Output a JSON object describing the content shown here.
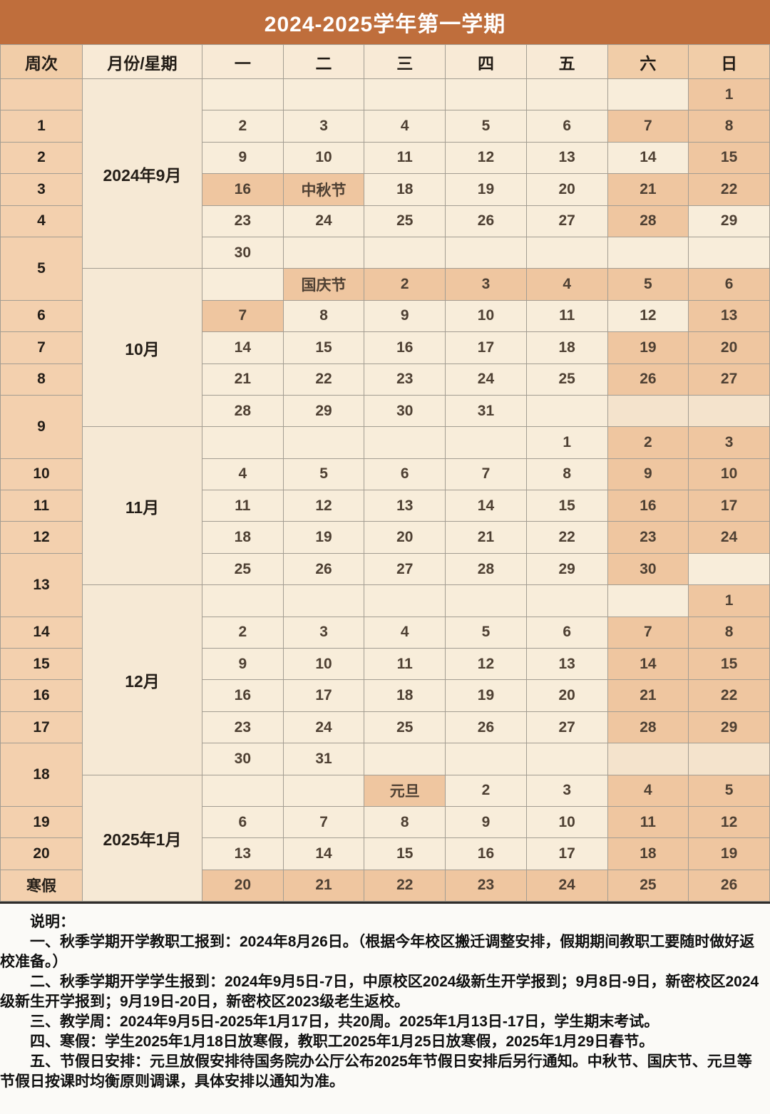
{
  "title": "2024-2025学年第一学期",
  "calendar": {
    "columns": [
      "周次",
      "月份/星期",
      "一",
      "二",
      "三",
      "四",
      "五",
      "六",
      "日"
    ],
    "holidays": [
      "中秋节",
      "国庆节",
      "元旦"
    ],
    "winter_break_label": "寒假",
    "rows": [
      {
        "w": "",
        "ws": 1,
        "m": "2024年9月",
        "ms": 6,
        "d": [
          [
            "",
            0
          ],
          [
            "",
            0
          ],
          [
            "",
            0
          ],
          [
            "",
            0
          ],
          [
            "",
            0
          ],
          [
            "",
            0
          ],
          [
            "1",
            1
          ]
        ]
      },
      {
        "w": "1",
        "ws": 1,
        "d": [
          [
            "2",
            0
          ],
          [
            "3",
            0
          ],
          [
            "4",
            0
          ],
          [
            "5",
            0
          ],
          [
            "6",
            0
          ],
          [
            "7",
            1
          ],
          [
            "8",
            1
          ]
        ]
      },
      {
        "w": "2",
        "ws": 1,
        "d": [
          [
            "9",
            0
          ],
          [
            "10",
            0
          ],
          [
            "11",
            0
          ],
          [
            "12",
            0
          ],
          [
            "13",
            0
          ],
          [
            "14",
            0
          ],
          [
            "15",
            1
          ]
        ]
      },
      {
        "w": "3",
        "ws": 1,
        "d": [
          [
            "16",
            1
          ],
          [
            "中秋节",
            1
          ],
          [
            "18",
            0
          ],
          [
            "19",
            0
          ],
          [
            "20",
            0
          ],
          [
            "21",
            1
          ],
          [
            "22",
            1
          ]
        ]
      },
      {
        "w": "4",
        "ws": 1,
        "d": [
          [
            "23",
            0
          ],
          [
            "24",
            0
          ],
          [
            "25",
            0
          ],
          [
            "26",
            0
          ],
          [
            "27",
            0
          ],
          [
            "28",
            1
          ],
          [
            "29",
            0
          ]
        ]
      },
      {
        "w": "5",
        "ws": 2,
        "d": [
          [
            "30",
            0
          ],
          [
            "",
            0
          ],
          [
            "",
            0
          ],
          [
            "",
            0
          ],
          [
            "",
            0
          ],
          [
            "",
            0
          ],
          [
            "",
            0
          ]
        ]
      },
      {
        "m": "10月",
        "ms": 5,
        "d": [
          [
            "",
            0
          ],
          [
            "国庆节",
            1
          ],
          [
            "2",
            1
          ],
          [
            "3",
            1
          ],
          [
            "4",
            1
          ],
          [
            "5",
            1
          ],
          [
            "6",
            1
          ]
        ]
      },
      {
        "w": "6",
        "ws": 1,
        "d": [
          [
            "7",
            1
          ],
          [
            "8",
            0
          ],
          [
            "9",
            0
          ],
          [
            "10",
            0
          ],
          [
            "11",
            0
          ],
          [
            "12",
            0
          ],
          [
            "13",
            1
          ]
        ]
      },
      {
        "w": "7",
        "ws": 1,
        "d": [
          [
            "14",
            0
          ],
          [
            "15",
            0
          ],
          [
            "16",
            0
          ],
          [
            "17",
            0
          ],
          [
            "18",
            0
          ],
          [
            "19",
            1
          ],
          [
            "20",
            1
          ]
        ]
      },
      {
        "w": "8",
        "ws": 1,
        "d": [
          [
            "21",
            0
          ],
          [
            "22",
            0
          ],
          [
            "23",
            0
          ],
          [
            "24",
            0
          ],
          [
            "25",
            0
          ],
          [
            "26",
            1
          ],
          [
            "27",
            1
          ]
        ]
      },
      {
        "w": "9",
        "ws": 2,
        "d": [
          [
            "28",
            0
          ],
          [
            "29",
            0
          ],
          [
            "30",
            0
          ],
          [
            "31",
            0
          ],
          [
            "",
            0
          ],
          [
            "",
            2
          ],
          [
            "",
            2
          ]
        ]
      },
      {
        "m": "11月",
        "ms": 5,
        "d": [
          [
            "",
            0
          ],
          [
            "",
            0
          ],
          [
            "",
            0
          ],
          [
            "",
            0
          ],
          [
            "1",
            0
          ],
          [
            "2",
            1
          ],
          [
            "3",
            1
          ]
        ]
      },
      {
        "w": "10",
        "ws": 1,
        "d": [
          [
            "4",
            0
          ],
          [
            "5",
            0
          ],
          [
            "6",
            0
          ],
          [
            "7",
            0
          ],
          [
            "8",
            0
          ],
          [
            "9",
            1
          ],
          [
            "10",
            1
          ]
        ]
      },
      {
        "w": "11",
        "ws": 1,
        "d": [
          [
            "11",
            0
          ],
          [
            "12",
            0
          ],
          [
            "13",
            0
          ],
          [
            "14",
            0
          ],
          [
            "15",
            0
          ],
          [
            "16",
            1
          ],
          [
            "17",
            1
          ]
        ]
      },
      {
        "w": "12",
        "ws": 1,
        "d": [
          [
            "18",
            0
          ],
          [
            "19",
            0
          ],
          [
            "20",
            0
          ],
          [
            "21",
            0
          ],
          [
            "22",
            0
          ],
          [
            "23",
            1
          ],
          [
            "24",
            1
          ]
        ]
      },
      {
        "w": "13",
        "ws": 2,
        "d": [
          [
            "25",
            0
          ],
          [
            "26",
            0
          ],
          [
            "27",
            0
          ],
          [
            "28",
            0
          ],
          [
            "29",
            0
          ],
          [
            "30",
            1
          ],
          [
            "",
            0
          ]
        ]
      },
      {
        "m": "12月",
        "ms": 6,
        "d": [
          [
            "",
            0
          ],
          [
            "",
            0
          ],
          [
            "",
            0
          ],
          [
            "",
            0
          ],
          [
            "",
            0
          ],
          [
            "",
            0
          ],
          [
            "1",
            1
          ]
        ]
      },
      {
        "w": "14",
        "ws": 1,
        "d": [
          [
            "2",
            0
          ],
          [
            "3",
            0
          ],
          [
            "4",
            0
          ],
          [
            "5",
            0
          ],
          [
            "6",
            0
          ],
          [
            "7",
            1
          ],
          [
            "8",
            1
          ]
        ]
      },
      {
        "w": "15",
        "ws": 1,
        "d": [
          [
            "9",
            0
          ],
          [
            "10",
            0
          ],
          [
            "11",
            0
          ],
          [
            "12",
            0
          ],
          [
            "13",
            0
          ],
          [
            "14",
            1
          ],
          [
            "15",
            1
          ]
        ]
      },
      {
        "w": "16",
        "ws": 1,
        "d": [
          [
            "16",
            0
          ],
          [
            "17",
            0
          ],
          [
            "18",
            0
          ],
          [
            "19",
            0
          ],
          [
            "20",
            0
          ],
          [
            "21",
            1
          ],
          [
            "22",
            1
          ]
        ]
      },
      {
        "w": "17",
        "ws": 1,
        "d": [
          [
            "23",
            0
          ],
          [
            "24",
            0
          ],
          [
            "25",
            0
          ],
          [
            "26",
            0
          ],
          [
            "27",
            0
          ],
          [
            "28",
            1
          ],
          [
            "29",
            1
          ]
        ]
      },
      {
        "w": "18",
        "ws": 2,
        "d": [
          [
            "30",
            0
          ],
          [
            "31",
            0
          ],
          [
            "",
            0
          ],
          [
            "",
            0
          ],
          [
            "",
            0
          ],
          [
            "",
            2
          ],
          [
            "",
            2
          ]
        ]
      },
      {
        "m": "2025年1月",
        "ms": 4,
        "d": [
          [
            "",
            0
          ],
          [
            "",
            0
          ],
          [
            "元旦",
            1
          ],
          [
            "2",
            0
          ],
          [
            "3",
            0
          ],
          [
            "4",
            1
          ],
          [
            "5",
            1
          ]
        ]
      },
      {
        "w": "19",
        "ws": 1,
        "d": [
          [
            "6",
            0
          ],
          [
            "7",
            0
          ],
          [
            "8",
            0
          ],
          [
            "9",
            0
          ],
          [
            "10",
            0
          ],
          [
            "11",
            1
          ],
          [
            "12",
            1
          ]
        ]
      },
      {
        "w": "20",
        "ws": 1,
        "d": [
          [
            "13",
            0
          ],
          [
            "14",
            0
          ],
          [
            "15",
            0
          ],
          [
            "16",
            0
          ],
          [
            "17",
            0
          ],
          [
            "18",
            1
          ],
          [
            "19",
            1
          ]
        ]
      },
      {
        "w": "寒假",
        "ws": 1,
        "d": [
          [
            "20",
            1
          ],
          [
            "21",
            1
          ],
          [
            "22",
            1
          ],
          [
            "23",
            1
          ],
          [
            "24",
            1
          ],
          [
            "25",
            1
          ],
          [
            "26",
            1
          ]
        ]
      }
    ]
  },
  "notes": {
    "heading": "说明：",
    "items": [
      "一、秋季学期开学教职工报到：2024年8月26日。（根据今年校区搬迁调整安排，假期期间教职工要随时做好返校准备。）",
      "二、秋季学期开学学生报到：2024年9月5日-7日，中原校区2024级新生开学报到；9月8日-9日，新密校区2024级新生开学报到；9月19日-20日，新密校区2023级老生返校。",
      "三、教学周：2024年9月5日-2025年1月17日，共20周。2025年1月13日-17日，学生期末考试。",
      "四、寒假：学生2025年1月18日放寒假，教职工2025年1月25日放寒假，2025年1月29日春节。",
      "五、节假日安排：元旦放假安排待国务院办公厅公布2025年节假日安排后另行通知。中秋节、国庆节、元旦等节假日按课时均衡原则调课，具体安排以通知为准。"
    ]
  },
  "colors": {
    "title_bar": "#bf6e3c",
    "header_cream": "#f8ead6",
    "header_peach": "#f1cda8",
    "week_column": "#f3d0ae",
    "month_cell": "#f6e9d5",
    "day_cell": "#f8edda",
    "holiday_highlight": "#efc6a0",
    "weekend_empty_tint": "#f4e3cc",
    "grid_border": "#a39d92"
  }
}
